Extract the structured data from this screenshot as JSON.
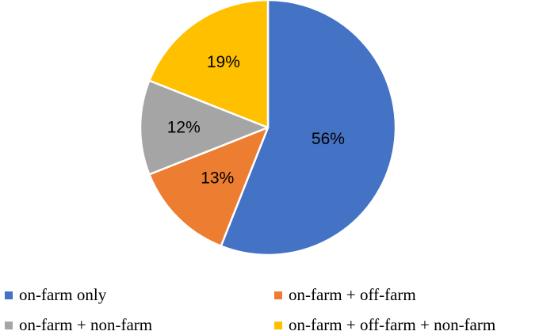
{
  "chart_data": {
    "type": "pie",
    "categories": [
      "on-farm only",
      "on-farm + off-farm",
      "on-farm + non-farm",
      "on-farm + off-farm + non-farm"
    ],
    "values": [
      56,
      13,
      12,
      19
    ],
    "data_labels": [
      "56%",
      "13%",
      "12%",
      "19%"
    ],
    "colors": [
      "#4472C4",
      "#ED7D31",
      "#A5A5A5",
      "#FFC000"
    ],
    "start_angle": "12 o'clock",
    "direction": "clockwise",
    "legend_position": "bottom"
  },
  "legend": {
    "items": [
      {
        "label": "on-farm only",
        "color": "#4472C4"
      },
      {
        "label": "on-farm + off-farm",
        "color": "#ED7D31"
      },
      {
        "label": "on-farm + non-farm",
        "color": "#A5A5A5"
      },
      {
        "label": "on-farm + off-farm + non-farm",
        "color": "#FFC000"
      }
    ]
  }
}
